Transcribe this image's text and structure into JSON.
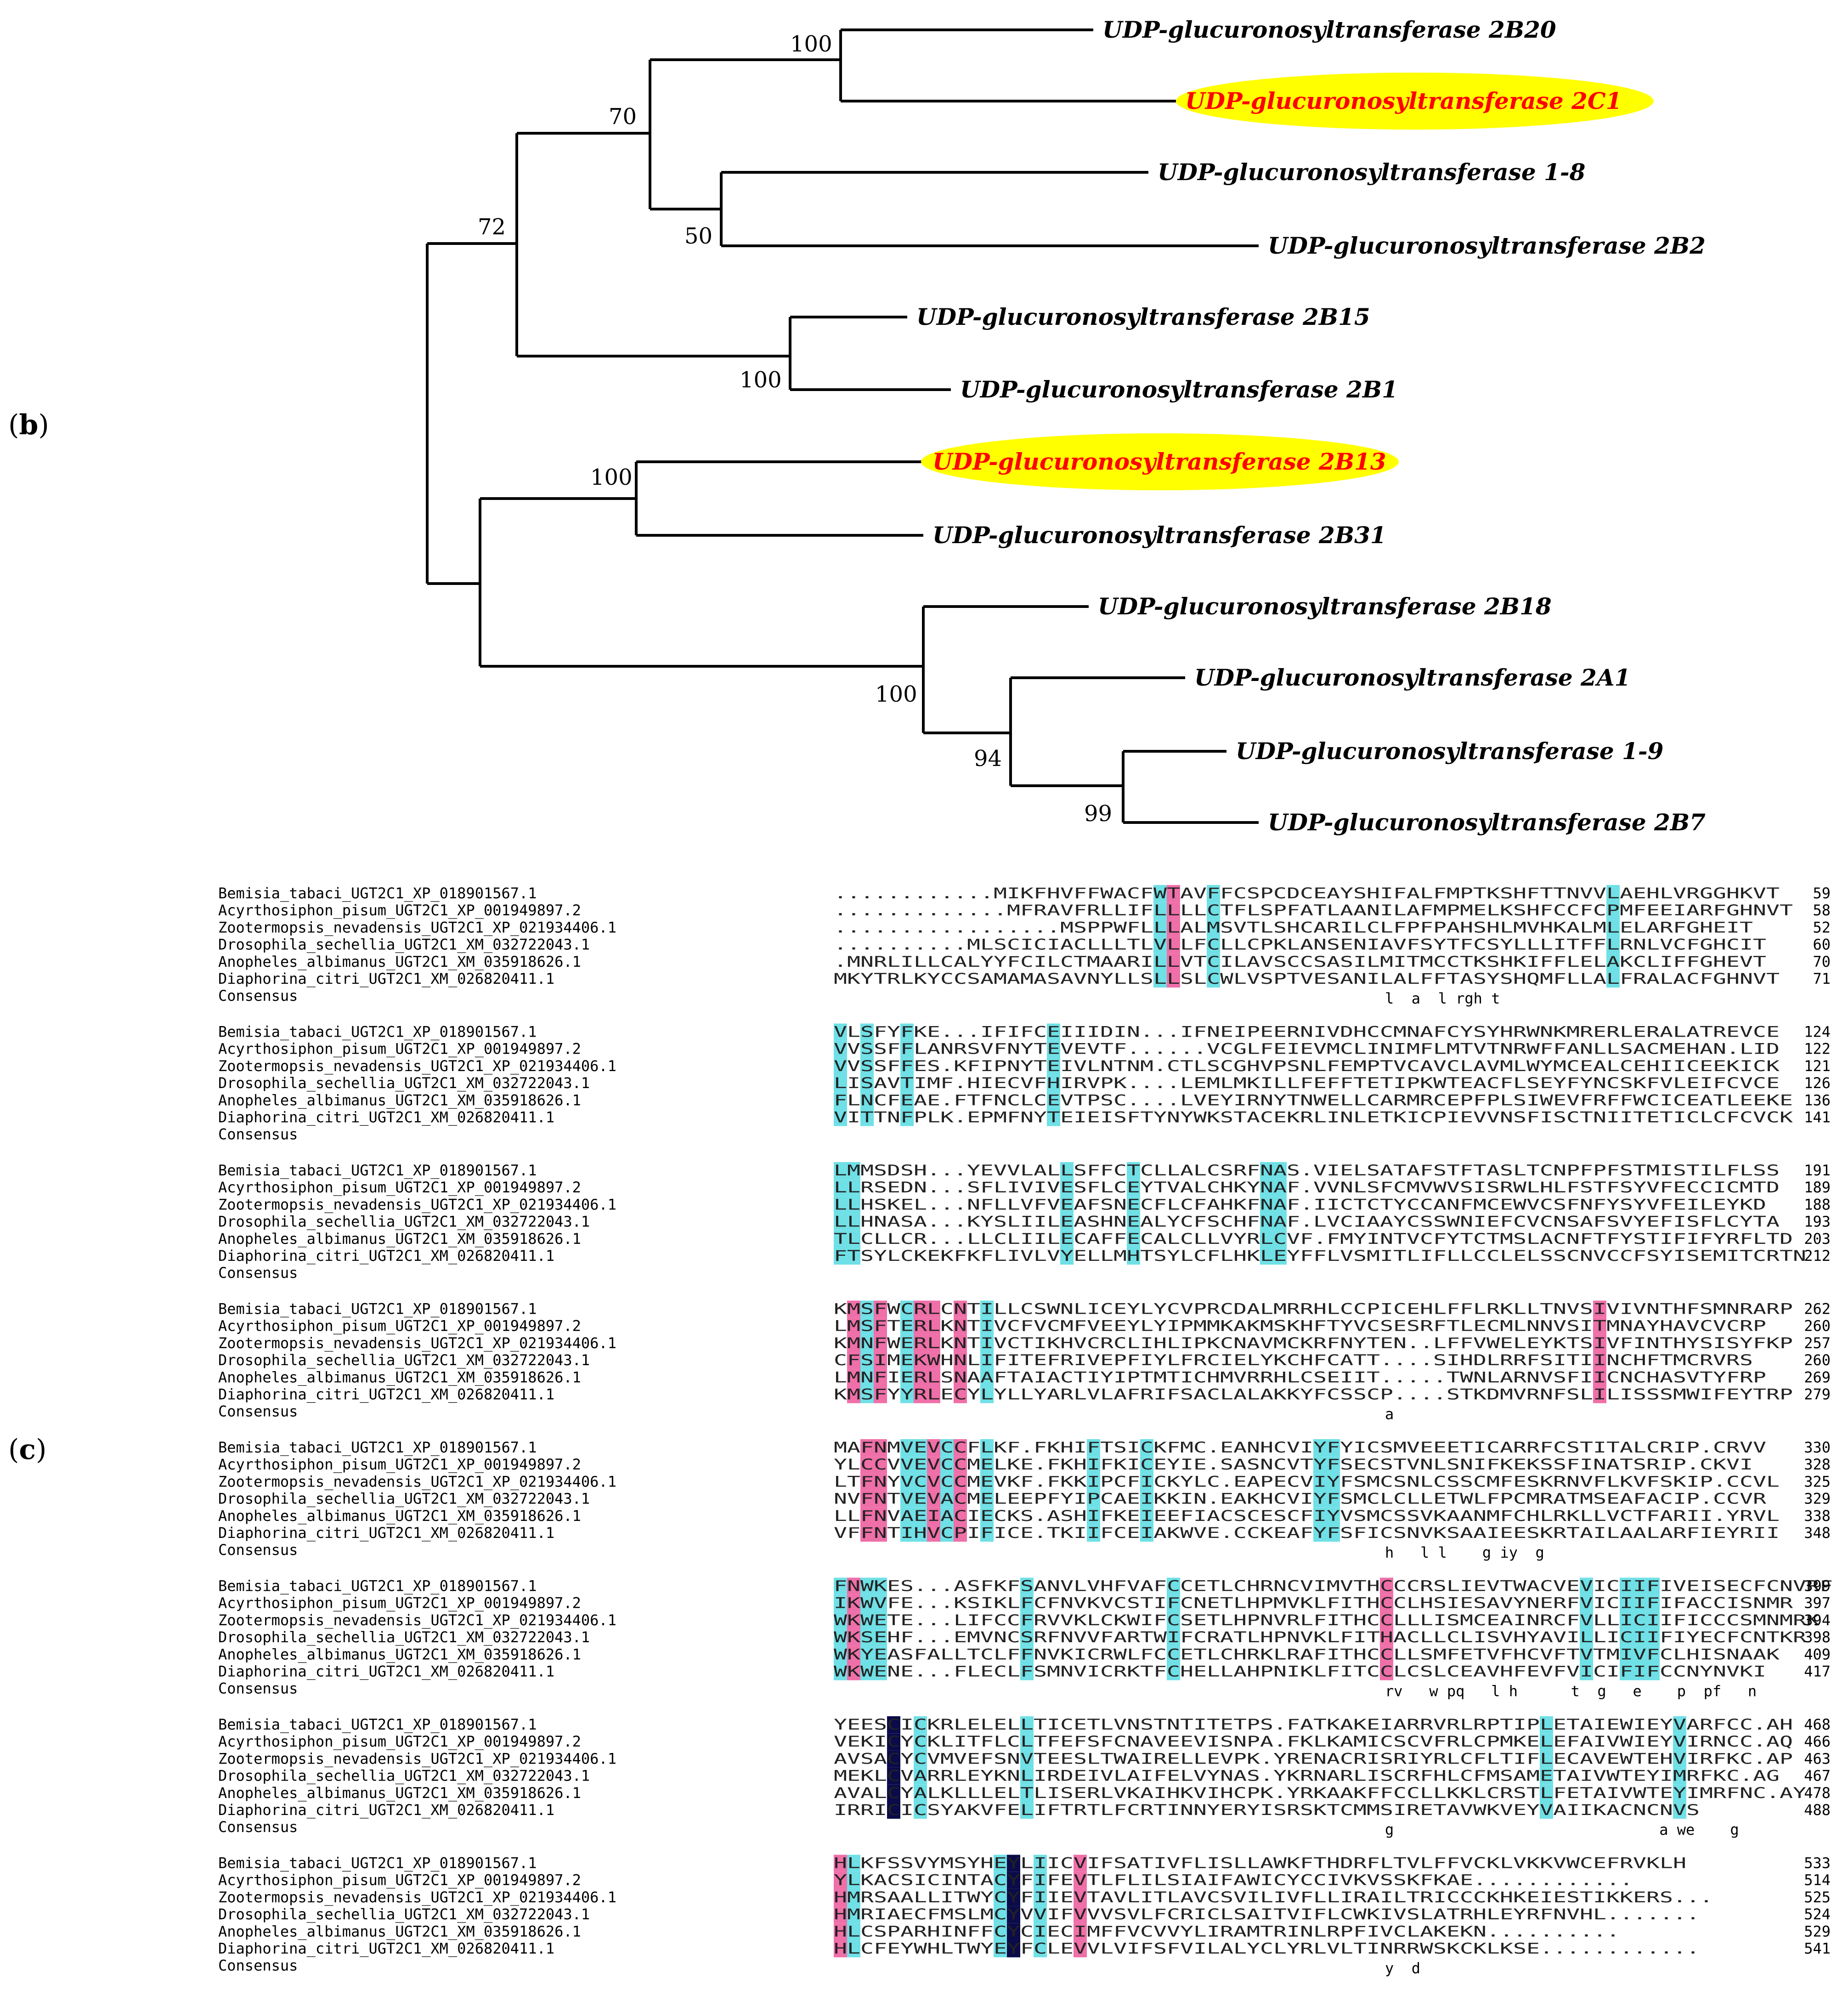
{
  "panel_b_label": {
    "open": "(",
    "letter": "b",
    "close": ")"
  },
  "panel_c_label": {
    "open": "(",
    "letter": "c",
    "close": ")"
  },
  "tree": {
    "leaves": [
      {
        "name": "UDP-glucuronosyltransferase 2B20",
        "highlight": false
      },
      {
        "name": "UDP-glucuronosyltransferase 2C1",
        "highlight": true
      },
      {
        "name": "UDP-glucuronosyltransferase 1-8",
        "highlight": false
      },
      {
        "name": "UDP-glucuronosyltransferase 2B2",
        "highlight": false
      },
      {
        "name": "UDP-glucuronosyltransferase 2B15",
        "highlight": false
      },
      {
        "name": "UDP-glucuronosyltransferase 2B1",
        "highlight": false
      },
      {
        "name": "UDP-glucuronosyltransferase 2B13",
        "highlight": true
      },
      {
        "name": "UDP-glucuronosyltransferase 2B31",
        "highlight": false
      },
      {
        "name": "UDP-glucuronosyltransferase 2B18",
        "highlight": false
      },
      {
        "name": "UDP-glucuronosyltransferase 2A1",
        "highlight": false
      },
      {
        "name": "UDP-glucuronosyltransferase 1-9",
        "highlight": false
      },
      {
        "name": "UDP-glucuronosyltransferase 2B7",
        "highlight": false
      }
    ],
    "bootstrap": [
      "100",
      "70",
      "50",
      "72",
      "100",
      "100",
      "100",
      "94",
      "99"
    ],
    "highlight_color": "#ffff00",
    "highlight_text_color": "#ff0000"
  },
  "alignment": {
    "species": [
      "Bemisia_tabaci_UGT2C1_XP_018901567.1",
      "Acyrthosiphon_pisum_UGT2C1_XP_001949897.2",
      "Zootermopsis_nevadensis_UGT2C1_XP_021934406.1",
      "Drosophila_sechellia_UGT2C1_XM_032722043.1",
      "Anopheles_albimanus_UGT2C1_XM_035918626.1",
      "Diaphorina_citri_UGT2C1_XM_026820411.1"
    ],
    "consensus_label": "Consensus",
    "blocks": [
      {
        "seqs": [
          "............MIKFHVFFWACFWTAVFFCSPCDCEAYSHIFALFMPTKSHFTTNVVLAEHLVRGGHKVT",
          ".............MFRAVFRLLIFLLLLCTFLSPFATLAANILAFMPMELKSHFCCFCPMFEEIARFGHNVT",
          ".................MSPPWFLLLALMSVTLSHCARILCLFPFPAHSHLMVHKALMLELARFGHEIT",
          "..........MLSCICIACLLLTLVLLFCLLCPKLANSENIAVFSYTFCSYLLLITFFLRNLVCFGHCIT",
          ".MNRLILLCALYYFCILCTMAARILLVTCILAVSCCSASILMITMCCTKSHKIFFLELAKCLIFFGHEVT",
          "MKYTRLKYCCSAMAMASAVNYLLSLLSLCWLVSPTVESANILALFFTASYSHQMFLLALFRALACFGHNVT"
        ],
        "ends": [
          "59",
          "58",
          "52",
          "60",
          "70",
          "71"
        ],
        "consensus": "l  a  l rgh t"
      },
      {
        "seqs": [
          "VLSFYFKE...IFIFCEIIIDIN...IFNEIPEERNIVDHCCMNAFCYSYHRWNKMRERLERALATREVCE",
          "VVSSFFLANRSVFNYTEVEVTF......VCGLFEIEVMCLINIMFLMTVTNRWFFANLLSACMEHAN.LID",
          "VVSSFFES.KFIPNYTEIVLNTNM.CTLSCGHVPSNLFEMPTVCAVCLAVMLWYMCEALCEHIICEEKICK",
          "LISAVTIMF.HIECVFHIRVPK....LEMLMKILLFEFFTETIPKWTEACFLSEYFYNCSKFVLEIFCVCE",
          "FLNCFEAE.FTFNCLCEVTPSC....LVEYIRNYTNWELLCARMRCEPFPLSIWEVFRFFWCICEATLEEKE",
          "VITTNFPLK.EPMFNYTEIEISFTYNYWKSTACEKRLINLETKICPIEVVNSFISCTNIITETICLCFCVCK"
        ],
        "ends": [
          "124",
          "122",
          "121",
          "126",
          "136",
          "141"
        ],
        "consensus": ""
      },
      {
        "seqs": [
          "LMMSDSH...YEVVLALLSFFCTCLLALCSRFNAS.VIELSATAFSTFTASLTCNPFPFSTMISTILFLSS",
          "LLRSEDN...SFLIVIVESFLCEYTVALCHKYNAF.VVNLSFCMVWVSISRWLHLFSTFSYVFECCICMTD",
          "LLHSKEL...NFLLVFVEAFSNECFLCFAHKFNAF.IICTCTYCCANFMCEWVCSFNFYSYVFEILEYKD",
          "LLHNASA...KYSLIILEASHNEALYCFSCHFNAF.LVCIAAYCSSWNIEFCVCNSAFSVYEFISFLCYTA",
          "TLCLLCR...LLCLIILECAFFECALCLLVYRLCVF.FMYINTVCFYTCTMSLACNFTFYSTIFIFYRFLTD",
          "FTSYLCKEKFKFLIVLVYELLMHTSYLCFLHKLEYFFLVSMITLIFLLCCLELSSCNVCCFSYISEMITCRTN"
        ],
        "ends": [
          "191",
          "189",
          "188",
          "193",
          "203",
          "212"
        ],
        "consensus": ""
      },
      {
        "seqs": [
          "KMSFWCRLCNTILLCSWNLICEYLYCVPRCDALMRRHLCCPICEHLFFLRKLLTNVSIVIVNTHFSMNRARP",
          "LMSFTERLKNTIVCFVCMFVEEYLYIPMMKAKMSKHFTYVCSESRFTLECMLNNVSITMNAYHAVCVCRP",
          "KMNFWERLKNTIVCTIKHVCRCLIHLIPKCNAVMCKRFNYTEN..LFFVWELEYKTSIVFINTHYSISYFKP",
          "CFSIMEKWHNLIFITEFRIVEPFIYLFRCIELYKCHFCATT....SIHDLRRFSITIINCHFTMCRVRS",
          "LMNFIERLSNAAFTAIACTIYIPTMTICHMVRRHLCSEIIT.....TWNLARNVSFIICNCHASVTYFRP",
          "KMSFYYRLECYLYLLYARLVLAFRIFSACLALAKKYFCSSCP....STKDMVRNFSLILISSSMWIFEYTRP"
        ],
        "ends": [
          "262",
          "260",
          "257",
          "260",
          "269",
          "279"
        ],
        "consensus": "a"
      },
      {
        "seqs": [
          "MAFNMVEVCCFLKF.FKHIFTSICKFMC.EANHCVIYFYICSMVEEETICARRFCSTITALCRIP.CRVV",
          "YLCCVVEVCCMELKE.FKHIFKICEYIE.SASNCVTYFSECSTVNLSNIFKEKSSFINATSRIP.CKVI",
          "LTFNYVCVCCMEVKF.FKKIPCFICKYLC.EAPECVIYFSMCSNLCSSCMFESKRNVFLKVFSKIP.CCVL",
          "NVFNTVEVACMELEEPFYIPCAEIKKIN.EAKHCVIYFSMCLCLLETWLFPCMRATMSEAFACIP.CCVR",
          "LLFNVAEIACIECKS.ASHIFKEIEEFIACSCESCFIYVSMCSSVKAANMFCHLRKLLVCTFARII.YRVL",
          "VFFNTIHVCPIFICE.TKIIFCEIAKWVE.CCKEAFYFSFICSNVKSAAIEESKRTAILAALARFIEYRII"
        ],
        "ends": [
          "330",
          "328",
          "325",
          "329",
          "338",
          "348"
        ],
        "consensus": "h   l l    g iy  g"
      },
      {
        "seqs": [
          "FNWKES...ASFKFSANVLVHFVAFCCETLCHRNCVIMVTHCCCRSLIEVTWACVEVICIIFIVEISECFCNVRF",
          "IKWVFE...KSIKLFCFNVKVCSTIFCNETLHPMVKLFITHCCLHSIESAVYNERFVICIIFIFACCISNMR",
          "WKWETE...LIFCCFRVVKLCKWIFCSETLHPNVRLFITHCCLLLISMCEAINRCFVLLICIIFICCCSMNMRK",
          "WKSEHF...EMVNCSRFNVVFARTWIFCRATLHPNVKLFITHACLLCLISVHYAVILLICIIFIYECFCNTKR",
          "WKYEASFALLTCLFFNVKICRWLFCCETLCHRKLRAFITHCCLLSMFETVFHCVFTVTMIVFCLHISNAAK",
          "WKWENE...FLECLFSMNVICRKTFCHELLAHPNIKLFITCCLCSLCEAVHFEVFVICIFIFCCNYNVKI"
        ],
        "ends": [
          "399",
          "397",
          "394",
          "398",
          "409",
          "417"
        ],
        "consensus": "rv   w pq   l h      t  g   e    p  pf   n"
      },
      {
        "seqs": [
          "YEESCICKRLELELLTICETLVNSTNTITETPS.FATKAKEIARRVRLRPTIPLETAIEWIEYVARFCC.AH",
          "VEKICYCKLITFLCLTFEFSFCNAVEEVISNPA.FKLKAMICSCVFRLCPMKELEFAIVWIEYVIRNCC.AQ",
          "AVSACYCVMVEFSNVTEESLTWAIRELLEVPK.YRENACRISRIYRLCFLTIFLECAVEWTEHVIRFKC.AP",
          "MEKLCVARRLEYKNLIRDEIVLAIFELVYNAS.YKRNARLISCRFHLCFMSAMETAIVWTEYIMRFKC.AG",
          "AVALCYALKLLLELTLISERLVKAIHKVIHCPK.YRKAAKFFCCLLKKLCRSTLFETAIVWTEYIMRFNC.AY",
          "IRRICICSYAKVFELIFTRTLFCRTINNYERYISRSKTCMMSIRETAVWKVEYVAIIKACNCNVS"
        ],
        "ends": [
          "468",
          "466",
          "463",
          "467",
          "478",
          "488"
        ],
        "consensus": "g                              a we    g"
      },
      {
        "seqs": [
          "HLKFSSVYMSYHEYLIICVIFSATIVFLISLLAWKFTHDRFLTVLFFVCKLVKKVWCEFRVKLH",
          "YLKACSICINTACYFIFEVTLFLILSIAIFAWICYCCIVKVSSKFKAE............",
          "HMRSAALLITWYCYFIIEVTAVLITLAVCSVILIVFLLIRAILTRICCCKHKEIESTIKKERS...",
          "HMRIAECFMSLMCYVVIFVVVSVLFCRICLSAITVIFLCWKIVSLATRHLEYRFNVHL.......",
          "HLCSPARHINFFCYCIECIMFFVCVVYLIRAMTRINLRPFIVCLAKEKN..........",
          "HLCFEYWHLTWYEYFCLEVVLVIFSFVILALYCLYRLVLTINRRWSKCKLKSE............"
        ],
        "ends": [
          "533",
          "514",
          "525",
          "524",
          "529",
          "541"
        ],
        "consensus": "y  d"
      }
    ],
    "colors": {
      "identical": "#0b0b4a",
      "identical_text": "#ffffff",
      "high": "#ef6fa8",
      "medium": "#6fe0e6"
    }
  }
}
